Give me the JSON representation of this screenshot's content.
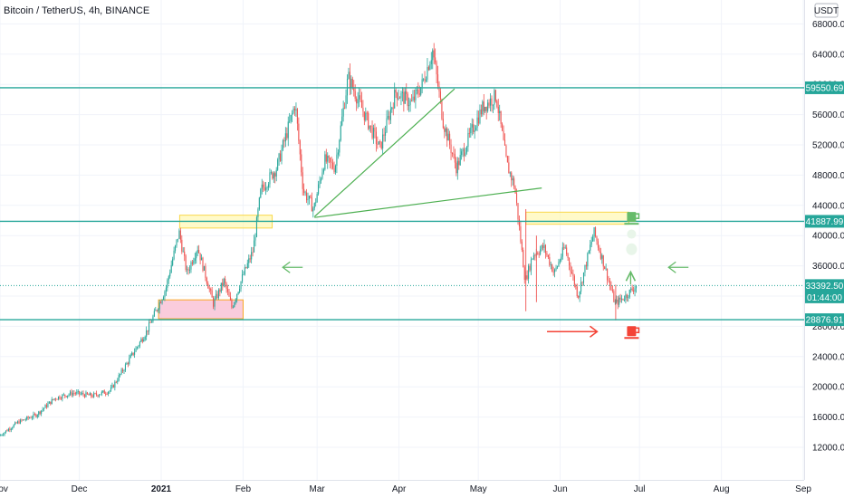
{
  "header": {
    "title": "Bitcoin / TetherUS, 4h, BINANCE",
    "currency": "USDT"
  },
  "colors": {
    "level": "#26a69a",
    "up": "#26a69a",
    "down": "#ef5350",
    "trend": "#4caf50",
    "zone_yellow": "#fff59d",
    "zone_pink": "#f8bbd0",
    "arrow_red": "#f44336",
    "arrow_green": "#66bb6a"
  },
  "chart_data": {
    "type": "candlestick",
    "title": "Bitcoin / TetherUS, 4h, BINANCE",
    "x_ticks": [
      "Nov",
      "Dec",
      "2021",
      "Feb",
      "Mar",
      "Apr",
      "May",
      "Jun",
      "Jul",
      "Aug",
      "Sep"
    ],
    "y_ticks": [
      "12000.00",
      "16000.00",
      "20000.00",
      "24000.00",
      "28000.00",
      "32000.00",
      "36000.00",
      "40000.00",
      "44000.00",
      "48000.00",
      "52000.00",
      "56000.00",
      "60000.00",
      "64000.00",
      "68000.00"
    ],
    "ylim": [
      8000,
      71500
    ],
    "price_path": [
      [
        "2020-11-01",
        13500
      ],
      [
        "2020-11-08",
        15300
      ],
      [
        "2020-11-15",
        16300
      ],
      [
        "2020-11-22",
        18500
      ],
      [
        "2020-11-29",
        19200
      ],
      [
        "2020-12-06",
        18800
      ],
      [
        "2020-12-13",
        19500
      ],
      [
        "2020-12-20",
        23500
      ],
      [
        "2020-12-27",
        27500
      ],
      [
        "2021-01-03",
        33000
      ],
      [
        "2021-01-08",
        40500
      ],
      [
        "2021-01-11",
        35000
      ],
      [
        "2021-01-15",
        38500
      ],
      [
        "2021-01-21",
        31000
      ],
      [
        "2021-01-25",
        34000
      ],
      [
        "2021-01-28",
        30500
      ],
      [
        "2021-02-01",
        34500
      ],
      [
        "2021-02-05",
        38000
      ],
      [
        "2021-02-08",
        46000
      ],
      [
        "2021-02-14",
        49000
      ],
      [
        "2021-02-21",
        57500
      ],
      [
        "2021-02-24",
        46000
      ],
      [
        "2021-02-28",
        43500
      ],
      [
        "2021-03-04",
        50000
      ],
      [
        "2021-03-08",
        49000
      ],
      [
        "2021-03-13",
        61000
      ],
      [
        "2021-03-18",
        57000
      ],
      [
        "2021-03-25",
        51500
      ],
      [
        "2021-03-31",
        59000
      ],
      [
        "2021-04-06",
        57500
      ],
      [
        "2021-04-10",
        60000
      ],
      [
        "2021-04-14",
        64500
      ],
      [
        "2021-04-18",
        55000
      ],
      [
        "2021-04-23",
        49000
      ],
      [
        "2021-04-29",
        54000
      ],
      [
        "2021-05-03",
        57000
      ],
      [
        "2021-05-08",
        58500
      ],
      [
        "2021-05-12",
        49500
      ],
      [
        "2021-05-15",
        46500
      ],
      [
        "2021-05-19",
        34000
      ],
      [
        "2021-05-22",
        37500
      ],
      [
        "2021-05-26",
        38500
      ],
      [
        "2021-05-30",
        35000
      ],
      [
        "2021-06-03",
        38500
      ],
      [
        "2021-06-08",
        32000
      ],
      [
        "2021-06-14",
        40500
      ],
      [
        "2021-06-18",
        36000
      ],
      [
        "2021-06-22",
        31000
      ],
      [
        "2021-06-26",
        32000
      ],
      [
        "2021-06-30",
        33392.5
      ]
    ],
    "horizontal_levels": [
      59550.69,
      41887.99,
      28876.91
    ],
    "last_price": 33392.5,
    "countdown": "01:44:00",
    "zones": [
      {
        "from": "2021-01-08",
        "to": "2021-02-12",
        "low": 41000,
        "high": 42700,
        "color": "yellow"
      },
      {
        "from": "2020-12-31",
        "to": "2021-02-01",
        "low": 29000,
        "high": 31500,
        "color": "pink"
      },
      {
        "from": "2021-05-19",
        "to": "2021-06-27",
        "low": 41500,
        "high": 43100,
        "color": "yellow"
      }
    ],
    "trendlines": [
      {
        "from": [
          "2021-02-28",
          42500
        ],
        "to": [
          "2021-04-22",
          59400
        ]
      },
      {
        "from": [
          "2021-02-28",
          42400
        ],
        "to": [
          "2021-05-25",
          46300
        ]
      }
    ],
    "annotations": [
      {
        "type": "arrow-left",
        "date": "2021-02-16",
        "price": 35800,
        "color": "green"
      },
      {
        "type": "arrow-left",
        "date": "2021-07-12",
        "price": 35800,
        "color": "green"
      },
      {
        "type": "arrow-right",
        "from": "2021-05-27",
        "to": "2021-06-15",
        "price": 27300,
        "color": "red"
      },
      {
        "type": "arrow-up",
        "date": "2021-06-28",
        "price": 35200,
        "color": "green"
      },
      {
        "type": "mug",
        "date": "2021-06-28",
        "price": 42400,
        "color": "green"
      },
      {
        "type": "mug",
        "date": "2021-06-28",
        "price": 27300,
        "color": "red"
      }
    ]
  }
}
